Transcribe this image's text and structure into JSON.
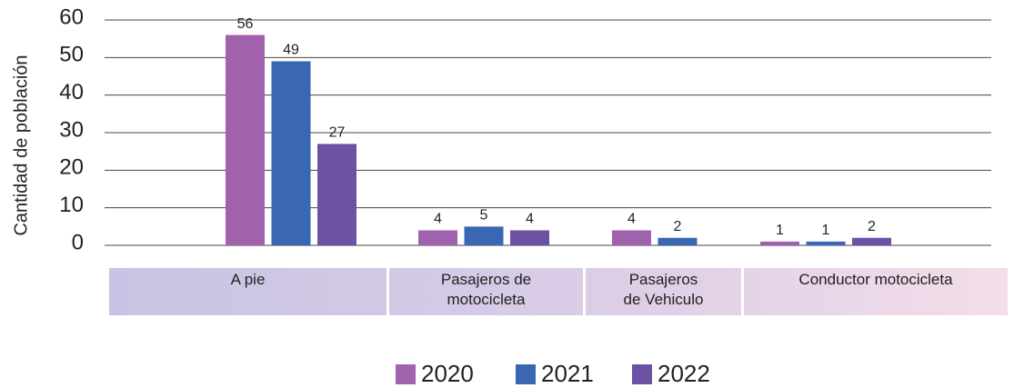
{
  "chart_data": {
    "type": "bar",
    "ylabel": "Cantidad de población",
    "categories": [
      "A pie",
      "Pasajeros de motocicleta",
      "Pasajeros de Vehiculo",
      "Conductor motocicleta"
    ],
    "series": [
      {
        "name": "2020",
        "color": "#a062ad",
        "values": [
          56,
          4,
          4,
          1
        ]
      },
      {
        "name": "2021",
        "color": "#3a67b4",
        "values": [
          49,
          5,
          2,
          1
        ]
      },
      {
        "name": "2022",
        "color": "#6d52a4",
        "values": [
          27,
          4,
          null,
          2
        ]
      }
    ],
    "ylim": [
      0,
      60
    ],
    "yticks": [
      0,
      10,
      20,
      30,
      40,
      50,
      60
    ],
    "grid": true,
    "legend": "bottom"
  }
}
